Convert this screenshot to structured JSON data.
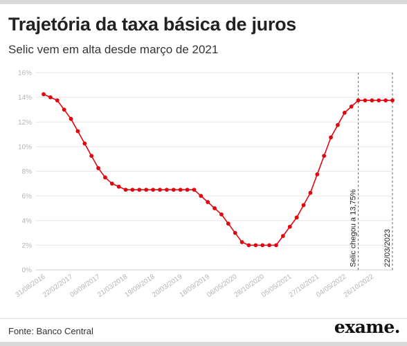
{
  "header": {
    "title": "Trajetória da taxa básica de juros",
    "subtitle": "Selic vem em alta desde março de 2021"
  },
  "footer": {
    "source": "Fonte: Banco Central",
    "logo": "exame."
  },
  "colors": {
    "series": "#e0060f",
    "grid": "#e6e6e6",
    "annotation_line": "#666666"
  },
  "chart_data": {
    "type": "line",
    "title": "Trajetória da taxa básica de juros",
    "subtitle": "Selic vem em alta desde março de 2021",
    "xlabel": "",
    "ylabel": "",
    "ylim": [
      0,
      16
    ],
    "yticks": [
      "0%",
      "2%",
      "4%",
      "6%",
      "8%",
      "10%",
      "12%",
      "14%",
      "16%"
    ],
    "grid": "horizontal",
    "xtick_labels": [
      "31/08/2016",
      "22/02/2017",
      "06/09/2017",
      "21/03/2018",
      "19/09/2018",
      "20/03/2019",
      "18/09/2019",
      "06/05/2020",
      "28/10/2020",
      "05/05/2021",
      "27/10/2021",
      "04/05/2022",
      "26/10/2022"
    ],
    "xtick_index": [
      0,
      4,
      8,
      12,
      16,
      20,
      24,
      28,
      32,
      36,
      40,
      44,
      48
    ],
    "series": [
      {
        "values": [
          14.25,
          14.0,
          13.75,
          13.0,
          12.25,
          11.25,
          10.25,
          9.25,
          8.25,
          7.5,
          7.0,
          6.75,
          6.5,
          6.5,
          6.5,
          6.5,
          6.5,
          6.5,
          6.5,
          6.5,
          6.5,
          6.5,
          6.5,
          6.0,
          5.5,
          5.0,
          4.5,
          3.75,
          3.0,
          2.25,
          2.0,
          2.0,
          2.0,
          2.0,
          2.0,
          2.75,
          3.5,
          4.25,
          5.25,
          6.25,
          7.75,
          9.25,
          10.75,
          11.75,
          12.75,
          13.25,
          13.75,
          13.75,
          13.75,
          13.75,
          13.75,
          13.75
        ]
      }
    ],
    "annotations": [
      {
        "label": "Selic chegou a 13,75%",
        "at_index": 46
      },
      {
        "label": "22/03/2023",
        "at_index": 51
      }
    ]
  }
}
